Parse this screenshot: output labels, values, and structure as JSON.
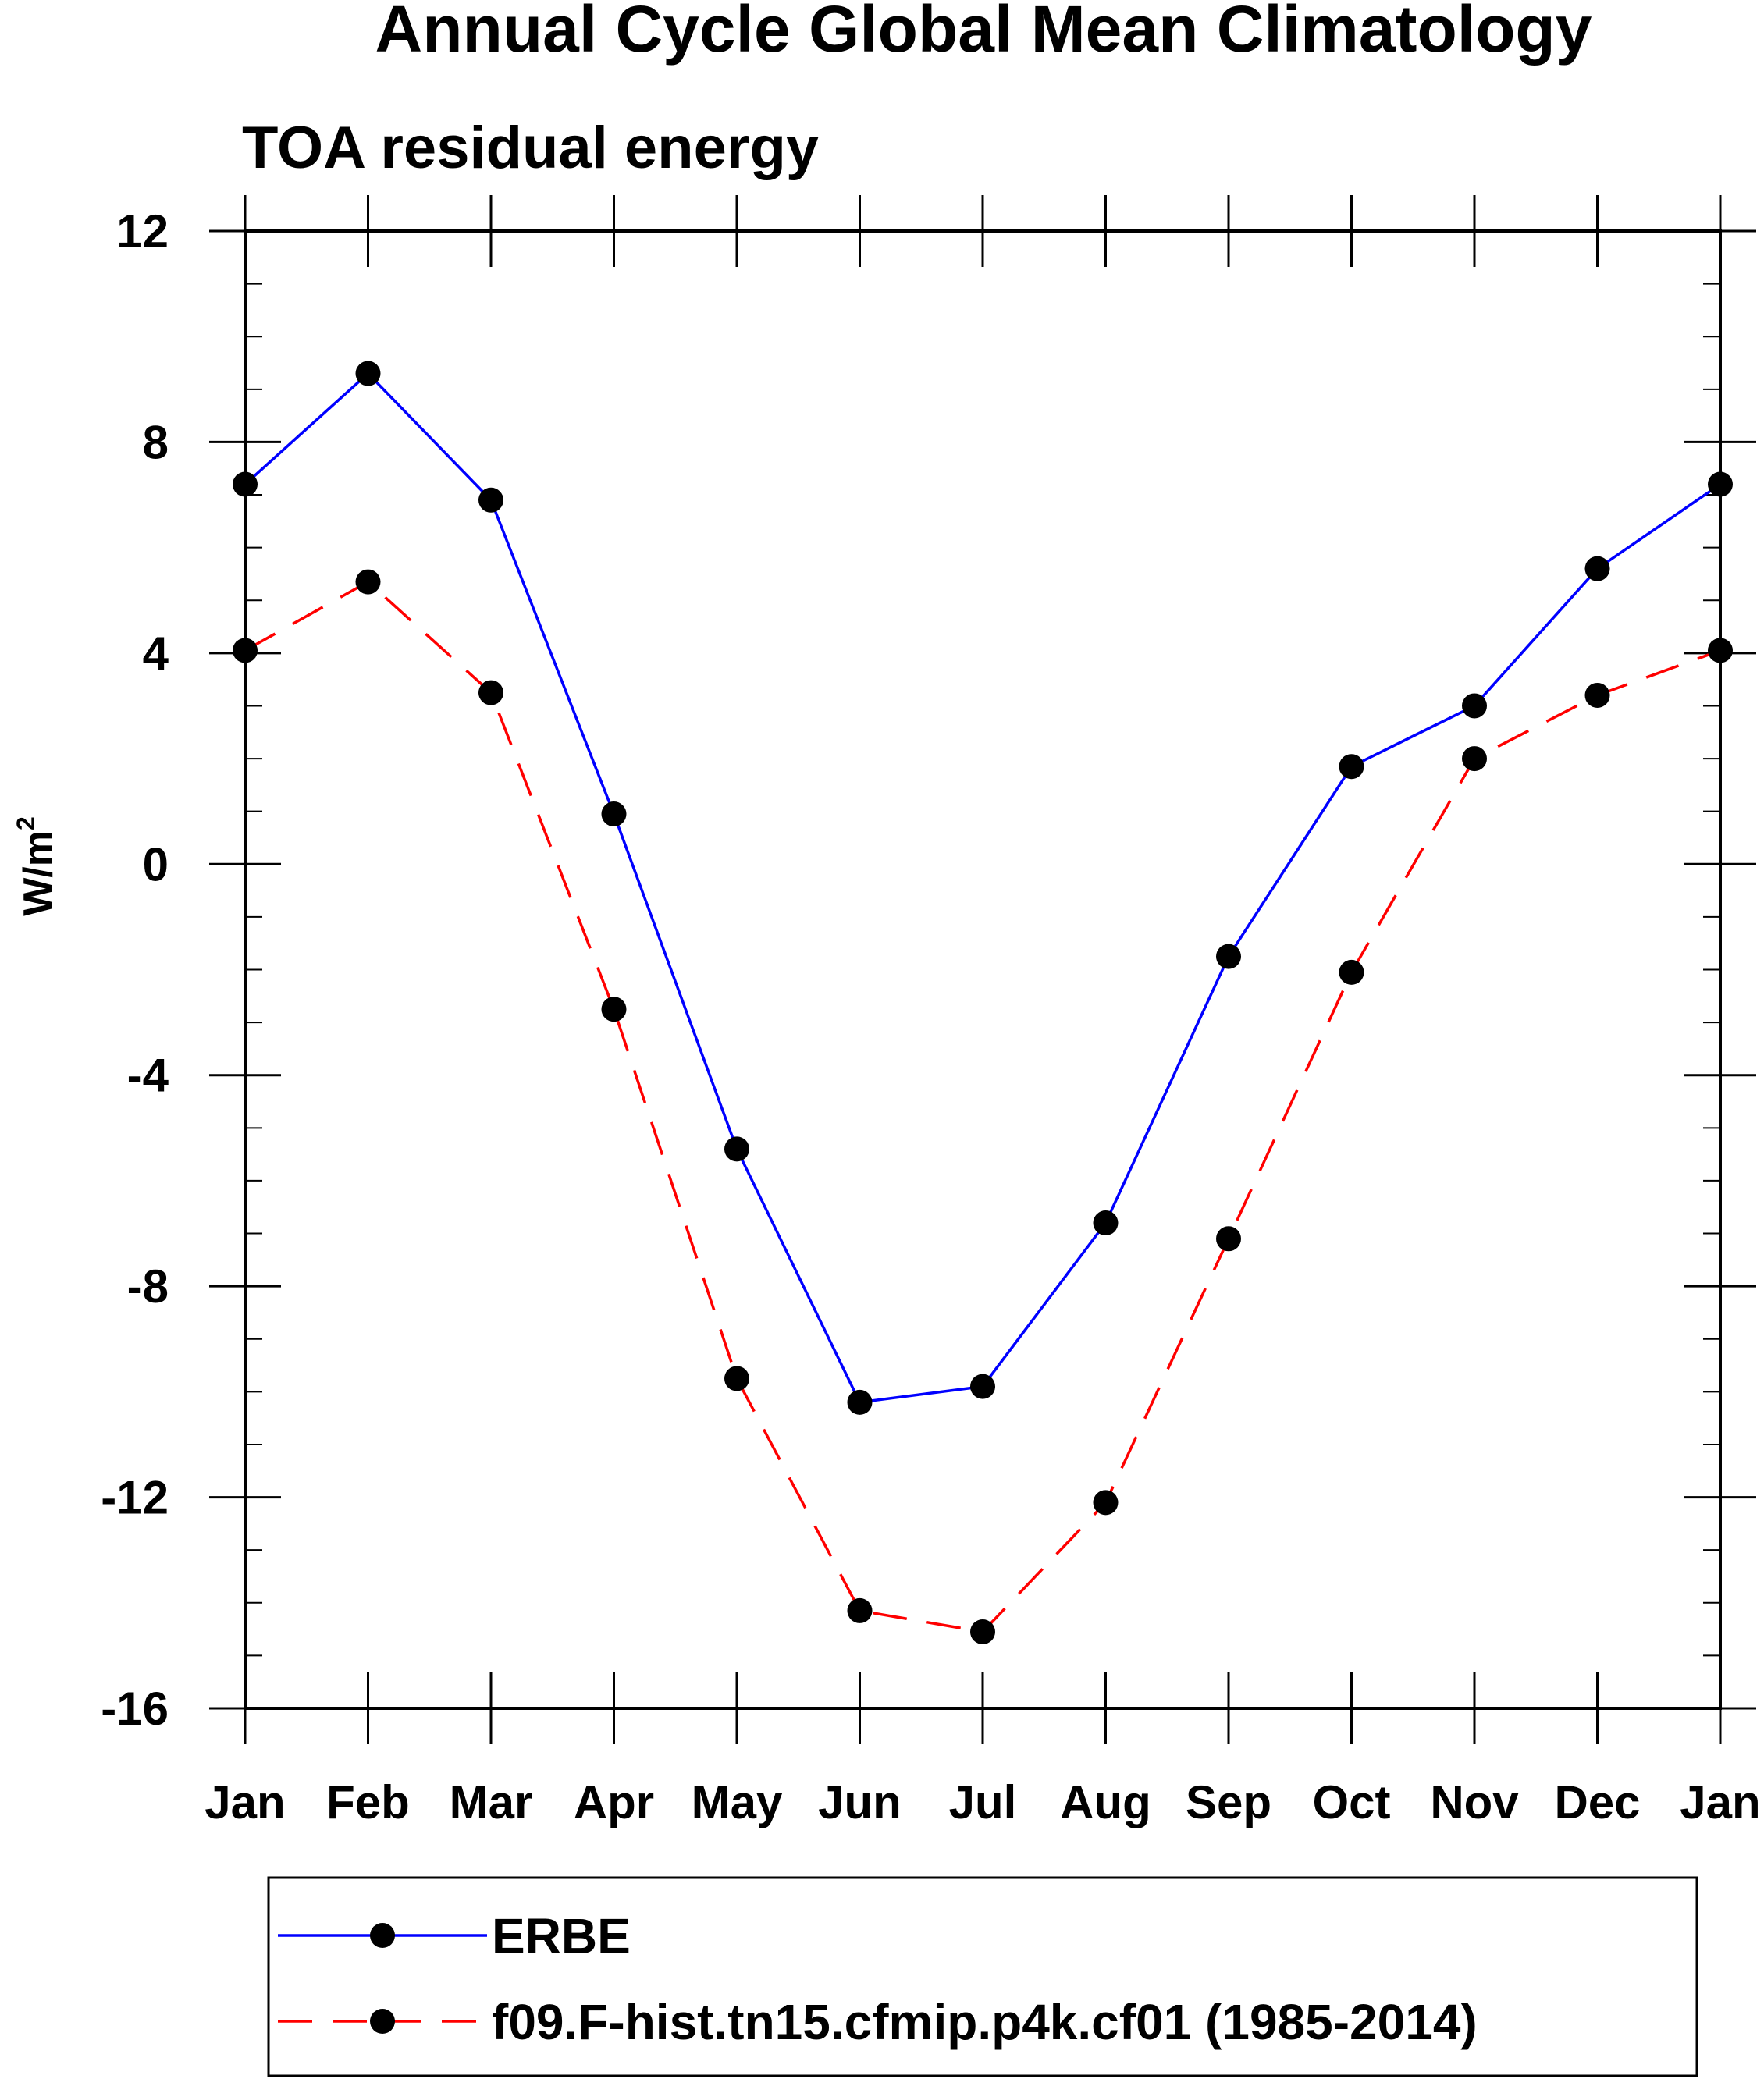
{
  "chart_data": {
    "type": "line",
    "title": "Annual Cycle Global Mean Climatology",
    "subtitle": "TOA residual energy",
    "xlabel": "",
    "ylabel_base": "W/m",
    "ylabel_superscript": "2",
    "categories": [
      "Jan",
      "Feb",
      "Mar",
      "Apr",
      "May",
      "Jun",
      "Jul",
      "Aug",
      "Sep",
      "Oct",
      "Nov",
      "Dec",
      "Jan"
    ],
    "ylim": [
      -16,
      12
    ],
    "y_ticks": [
      "12",
      "8",
      "4",
      "0",
      "-4",
      "-8",
      "-12",
      "-16"
    ],
    "y_tick_values": [
      12,
      8,
      4,
      0,
      -4,
      -8,
      -12,
      -16
    ],
    "y_minor_step": 1,
    "grid": false,
    "legend_position": "bottom",
    "series": [
      {
        "name": "ERBE",
        "color": "#0000ff",
        "dash": "solid",
        "marker": "filled-circle",
        "marker_color": "#000000",
        "values": [
          7.2,
          9.3,
          6.9,
          0.95,
          -5.4,
          -10.2,
          -9.9,
          -6.8,
          -1.75,
          1.85,
          3.0,
          5.6,
          7.2
        ]
      },
      {
        "name": "f09.F-hist.tn15.cfmip.p4k.cf01 (1985-2014)",
        "color": "#ff0000",
        "dash": "dashed",
        "marker": "filled-circle",
        "marker_color": "#000000",
        "values": [
          4.05,
          5.35,
          3.25,
          -2.75,
          -9.75,
          -14.15,
          -14.55,
          -12.1,
          -7.1,
          -2.05,
          2.0,
          3.2,
          4.05
        ]
      }
    ]
  }
}
